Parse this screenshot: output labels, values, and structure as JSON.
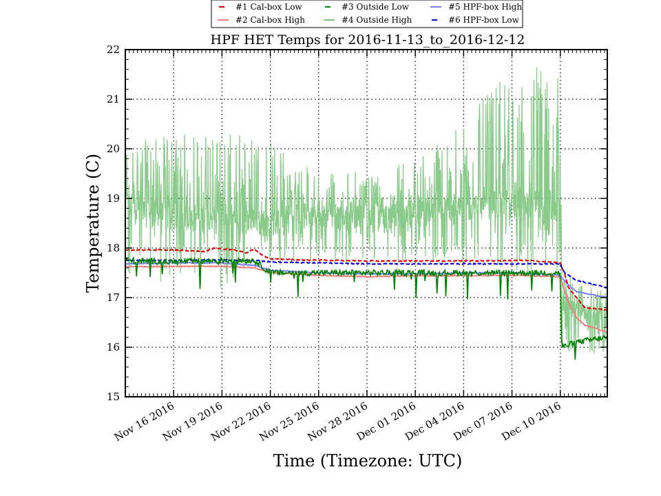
{
  "chart_data": {
    "type": "line",
    "title": "HPF HET Temps for 2016-11-13_to_2016-12-12",
    "xlabel": "Time (Timezone: UTC)",
    "ylabel": "Temperature (C)",
    "xlim": [
      "2016-11-13",
      "2016-12-12 22:00"
    ],
    "ylim": [
      15,
      22
    ],
    "grid": true,
    "grid_style": "dotted",
    "legend_position": "top-center",
    "x_tick_labels": [
      "Nov 16 2016",
      "Nov 19 2016",
      "Nov 22 2016",
      "Nov 25 2016",
      "Nov 28 2016",
      "Dec 01 2016",
      "Dec 04 2016",
      "Dec 07 2016",
      "Dec 10 2016"
    ],
    "x_tick_dates": [
      "2016-11-16",
      "2016-11-19",
      "2016-11-22",
      "2016-11-25",
      "2016-11-28",
      "2016-12-01",
      "2016-12-04",
      "2016-12-07",
      "2016-12-10"
    ],
    "y_tick_labels": [
      "15",
      "16",
      "17",
      "18",
      "19",
      "20",
      "21",
      "22"
    ],
    "series": [
      {
        "name": "#1 Cal-box Low",
        "color": "#dd0000",
        "style": "dashed",
        "x": [
          "2016-11-13",
          "2016-11-16",
          "2016-11-18",
          "2016-11-18 12:00",
          "2016-11-20",
          "2016-11-20 12:00",
          "2016-11-21",
          "2016-11-21 12:00",
          "2016-11-22",
          "2016-11-24",
          "2016-11-28",
          "2016-12-02",
          "2016-12-05",
          "2016-12-08",
          "2016-12-10",
          "2016-12-10 06:00",
          "2016-12-10 12:00",
          "2016-12-11",
          "2016-12-11 12:00",
          "2016-12-12 22:00"
        ],
        "y": [
          17.96,
          17.96,
          17.93,
          18.0,
          17.95,
          17.9,
          17.98,
          17.85,
          17.78,
          17.76,
          17.74,
          17.74,
          17.74,
          17.75,
          17.7,
          17.5,
          17.2,
          17.0,
          16.8,
          16.75
        ]
      },
      {
        "name": "#2 Cal-box High",
        "color": "#f08080",
        "style": "solid",
        "x": [
          "2016-11-13",
          "2016-11-16",
          "2016-11-19",
          "2016-11-21",
          "2016-11-22",
          "2016-11-25",
          "2016-11-28",
          "2016-12-01",
          "2016-12-04",
          "2016-12-07",
          "2016-12-10",
          "2016-12-10 12:00",
          "2016-12-11",
          "2016-12-11 12:00",
          "2016-12-12 22:00"
        ],
        "y": [
          17.62,
          17.63,
          17.63,
          17.6,
          17.5,
          17.45,
          17.42,
          17.44,
          17.44,
          17.45,
          17.42,
          16.9,
          16.6,
          16.45,
          16.3
        ]
      },
      {
        "name": "#3 Outside Low",
        "color": "#008000",
        "style": "dashed",
        "x": [
          "2016-11-13",
          "2016-11-16",
          "2016-11-19",
          "2016-11-21",
          "2016-11-22",
          "2016-11-25",
          "2016-11-28",
          "2016-12-01",
          "2016-12-04",
          "2016-12-07",
          "2016-12-10",
          "2016-12-10 02:00",
          "2016-12-11",
          "2016-12-12 22:00"
        ],
        "y": [
          17.75,
          17.72,
          17.75,
          17.75,
          17.5,
          17.5,
          17.5,
          17.5,
          17.5,
          17.5,
          17.5,
          16.0,
          16.1,
          16.2
        ]
      },
      {
        "name": "#4 Outside High",
        "color": "#7dc47d",
        "style": "solid",
        "x": [
          "2016-11-13",
          "2016-11-16",
          "2016-11-19",
          "2016-11-22",
          "2016-11-25",
          "2016-11-28",
          "2016-12-01",
          "2016-12-04",
          "2016-12-07",
          "2016-12-10",
          "2016-12-10 02:00",
          "2016-12-12 22:00"
        ],
        "y": [
          18.8,
          18.6,
          18.6,
          18.5,
          18.7,
          18.6,
          18.7,
          18.8,
          18.9,
          18.8,
          17.0,
          16.3
        ],
        "y_min": [
          17.3,
          17.2,
          17.2,
          17.6,
          17.7,
          17.7,
          17.7,
          17.6,
          17.5,
          17.4,
          15.9,
          15.8
        ],
        "y_max": [
          20.1,
          20.3,
          20.4,
          20.2,
          19.5,
          19.6,
          19.8,
          20.6,
          21.6,
          21.7,
          17.6,
          17.1
        ]
      },
      {
        "name": "#5 HPF-box High",
        "color": "#8080ee",
        "style": "solid",
        "x": [
          "2016-11-13",
          "2016-11-16",
          "2016-11-19",
          "2016-11-21",
          "2016-11-22",
          "2016-11-25",
          "2016-11-28",
          "2016-12-01",
          "2016-12-04",
          "2016-12-07",
          "2016-12-10",
          "2016-12-10 12:00",
          "2016-12-11",
          "2016-12-12 22:00"
        ],
        "y": [
          17.68,
          17.7,
          17.7,
          17.65,
          17.55,
          17.5,
          17.48,
          17.48,
          17.5,
          17.5,
          17.45,
          17.25,
          17.12,
          17.0
        ]
      },
      {
        "name": "#6 HPF-box Low",
        "color": "#0000dd",
        "style": "dashed",
        "x": [
          "2016-11-13",
          "2016-11-16",
          "2016-11-19",
          "2016-11-21",
          "2016-11-22",
          "2016-11-25",
          "2016-11-28",
          "2016-12-01",
          "2016-12-04",
          "2016-12-07",
          "2016-12-10",
          "2016-12-10 06:00",
          "2016-12-11",
          "2016-12-12 22:00"
        ],
        "y": [
          17.75,
          17.75,
          17.76,
          17.75,
          17.72,
          17.7,
          17.68,
          17.68,
          17.68,
          17.68,
          17.68,
          17.5,
          17.35,
          17.2
        ]
      }
    ]
  }
}
